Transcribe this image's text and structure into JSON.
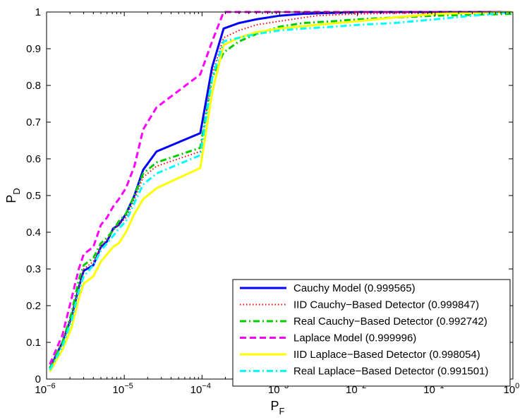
{
  "chart_data": {
    "type": "line",
    "title": "",
    "xlabel": "P",
    "xlabel_subscript": "F",
    "ylabel": "P",
    "ylabel_subscript": "D",
    "xscale": "log10",
    "xlim": [
      1e-06,
      1
    ],
    "ylim": [
      0,
      1
    ],
    "x_ticks": [
      {
        "value": 1e-06,
        "base": "10",
        "exp": "−6"
      },
      {
        "value": 1e-05,
        "base": "10",
        "exp": "−5"
      },
      {
        "value": 0.0001,
        "base": "10",
        "exp": "−4"
      },
      {
        "value": 0.001,
        "base": "10",
        "exp": "−3"
      },
      {
        "value": 0.01,
        "base": "10",
        "exp": "−2"
      },
      {
        "value": 0.1,
        "base": "10",
        "exp": "−1"
      },
      {
        "value": 1,
        "base": "10",
        "exp": "0"
      }
    ],
    "y_ticks": [
      {
        "value": 0,
        "label": "0"
      },
      {
        "value": 0.1,
        "label": "0.1"
      },
      {
        "value": 0.2,
        "label": "0.2"
      },
      {
        "value": 0.3,
        "label": "0.3"
      },
      {
        "value": 0.4,
        "label": "0.4"
      },
      {
        "value": 0.5,
        "label": "0.5"
      },
      {
        "value": 0.6,
        "label": "0.6"
      },
      {
        "value": 0.7,
        "label": "0.7"
      },
      {
        "value": 0.8,
        "label": "0.8"
      },
      {
        "value": 0.9,
        "label": "0.9"
      },
      {
        "value": 1,
        "label": "1"
      }
    ],
    "grid": false,
    "legend_position": "bottom-right",
    "series": [
      {
        "name": "Cauchy Model (0.999565)",
        "color": "#0000ff",
        "dash": "solid",
        "points": [
          [
            1.1e-06,
            0.03
          ],
          [
            1.6e-06,
            0.1
          ],
          [
            2.1e-06,
            0.17
          ],
          [
            2.6e-06,
            0.25
          ],
          [
            3e-06,
            0.295
          ],
          [
            4e-06,
            0.31
          ],
          [
            5e-06,
            0.36
          ],
          [
            6e-06,
            0.375
          ],
          [
            7.2e-06,
            0.41
          ],
          [
            8.5e-06,
            0.42
          ],
          [
            1.05e-05,
            0.45
          ],
          [
            1.35e-05,
            0.5
          ],
          [
            1.75e-05,
            0.57
          ],
          [
            2.6e-05,
            0.62
          ],
          [
            9.5e-05,
            0.67
          ],
          [
            0.000135,
            0.85
          ],
          [
            0.00019,
            0.955
          ],
          [
            0.0003,
            0.97
          ],
          [
            0.0005,
            0.98
          ],
          [
            0.001,
            0.99
          ],
          [
            0.002,
            0.995
          ],
          [
            0.01,
            1
          ],
          [
            1,
            1
          ]
        ]
      },
      {
        "name": "IID Cauchy−Based Detector (0.999847)",
        "color": "#ff0000",
        "dash": "dotted",
        "points": [
          [
            1.1e-06,
            0.03
          ],
          [
            1.6e-06,
            0.1
          ],
          [
            2.1e-06,
            0.17
          ],
          [
            2.6e-06,
            0.25
          ],
          [
            3e-06,
            0.3
          ],
          [
            4e-06,
            0.32
          ],
          [
            5e-06,
            0.36
          ],
          [
            6e-06,
            0.38
          ],
          [
            7.2e-06,
            0.405
          ],
          [
            8.5e-06,
            0.42
          ],
          [
            1.05e-05,
            0.44
          ],
          [
            1.35e-05,
            0.49
          ],
          [
            1.75e-05,
            0.55
          ],
          [
            2.6e-05,
            0.58
          ],
          [
            9.5e-05,
            0.62
          ],
          [
            0.000135,
            0.83
          ],
          [
            0.00019,
            0.93
          ],
          [
            0.0003,
            0.95
          ],
          [
            0.0005,
            0.965
          ],
          [
            0.001,
            0.975
          ],
          [
            0.003,
            0.99
          ],
          [
            0.01,
            0.995
          ],
          [
            0.1,
            0.998
          ],
          [
            1,
            1
          ]
        ]
      },
      {
        "name": "Real Cauchy−Based Detector (0.992742)",
        "color": "#00cc00",
        "dash": "dashdot",
        "points": [
          [
            1.1e-06,
            0.03
          ],
          [
            1.6e-06,
            0.1
          ],
          [
            2.1e-06,
            0.18
          ],
          [
            2.6e-06,
            0.27
          ],
          [
            3e-06,
            0.31
          ],
          [
            4e-06,
            0.33
          ],
          [
            5e-06,
            0.37
          ],
          [
            6e-06,
            0.385
          ],
          [
            7.2e-06,
            0.405
          ],
          [
            8.5e-06,
            0.43
          ],
          [
            1.05e-05,
            0.45
          ],
          [
            1.35e-05,
            0.5
          ],
          [
            1.75e-05,
            0.56
          ],
          [
            2.6e-05,
            0.59
          ],
          [
            9.5e-05,
            0.63
          ],
          [
            0.000135,
            0.82
          ],
          [
            0.00019,
            0.89
          ],
          [
            0.0003,
            0.92
          ],
          [
            0.0005,
            0.94
          ],
          [
            0.001,
            0.96
          ],
          [
            0.002,
            0.97
          ],
          [
            0.005,
            0.975
          ],
          [
            0.01,
            0.98
          ],
          [
            0.03,
            0.985
          ],
          [
            0.1,
            0.99
          ],
          [
            1,
            0.995
          ]
        ]
      },
      {
        "name": "Laplace Model (0.999996)",
        "color": "#ff00ff",
        "dash": "dashed",
        "points": [
          [
            1.1e-06,
            0.04
          ],
          [
            1.6e-06,
            0.12
          ],
          [
            2.1e-06,
            0.22
          ],
          [
            2.6e-06,
            0.3
          ],
          [
            3e-06,
            0.34
          ],
          [
            4e-06,
            0.36
          ],
          [
            5e-06,
            0.42
          ],
          [
            6e-06,
            0.44
          ],
          [
            7.2e-06,
            0.47
          ],
          [
            8.5e-06,
            0.49
          ],
          [
            1.05e-05,
            0.52
          ],
          [
            1.35e-05,
            0.58
          ],
          [
            1.75e-05,
            0.68
          ],
          [
            2.6e-05,
            0.74
          ],
          [
            9.5e-05,
            0.83
          ],
          [
            0.000135,
            0.92
          ],
          [
            0.00019,
            1
          ],
          [
            1,
            1
          ]
        ]
      },
      {
        "name": "IID Laplace−Based Detector (0.998054)",
        "color": "#ffff00",
        "dash": "solid",
        "points": [
          [
            1.1e-06,
            0.02
          ],
          [
            1.6e-06,
            0.08
          ],
          [
            2.1e-06,
            0.14
          ],
          [
            2.6e-06,
            0.22
          ],
          [
            3e-06,
            0.26
          ],
          [
            4e-06,
            0.28
          ],
          [
            5e-06,
            0.32
          ],
          [
            6e-06,
            0.34
          ],
          [
            7.2e-06,
            0.36
          ],
          [
            8.5e-06,
            0.37
          ],
          [
            1.05e-05,
            0.4
          ],
          [
            1.35e-05,
            0.45
          ],
          [
            1.75e-05,
            0.49
          ],
          [
            2.6e-05,
            0.52
          ],
          [
            9.5e-05,
            0.575
          ],
          [
            0.000135,
            0.78
          ],
          [
            0.00019,
            0.91
          ],
          [
            0.0003,
            0.93
          ],
          [
            0.0005,
            0.945
          ],
          [
            0.001,
            0.955
          ],
          [
            0.003,
            0.965
          ],
          [
            0.01,
            0.975
          ],
          [
            0.03,
            0.985
          ],
          [
            0.1,
            0.995
          ],
          [
            1,
            1
          ]
        ]
      },
      {
        "name": "Real Laplace−Based Detector (0.991501)",
        "color": "#00ffff",
        "dash": "dashdot",
        "points": [
          [
            1.1e-06,
            0.025
          ],
          [
            1.6e-06,
            0.09
          ],
          [
            2.1e-06,
            0.16
          ],
          [
            2.6e-06,
            0.24
          ],
          [
            3e-06,
            0.28
          ],
          [
            4e-06,
            0.31
          ],
          [
            5e-06,
            0.35
          ],
          [
            6e-06,
            0.37
          ],
          [
            7.2e-06,
            0.39
          ],
          [
            8.5e-06,
            0.41
          ],
          [
            1.05e-05,
            0.43
          ],
          [
            1.35e-05,
            0.48
          ],
          [
            1.75e-05,
            0.53
          ],
          [
            2.6e-05,
            0.56
          ],
          [
            9.5e-05,
            0.61
          ],
          [
            0.000135,
            0.82
          ],
          [
            0.00019,
            0.92
          ],
          [
            0.0003,
            0.93
          ],
          [
            0.0005,
            0.94
          ],
          [
            0.001,
            0.95
          ],
          [
            0.002,
            0.955
          ],
          [
            0.005,
            0.96
          ],
          [
            0.01,
            0.965
          ],
          [
            0.03,
            0.97
          ],
          [
            0.1,
            0.98
          ],
          [
            0.3,
            0.99
          ],
          [
            1,
            1
          ]
        ]
      }
    ]
  }
}
